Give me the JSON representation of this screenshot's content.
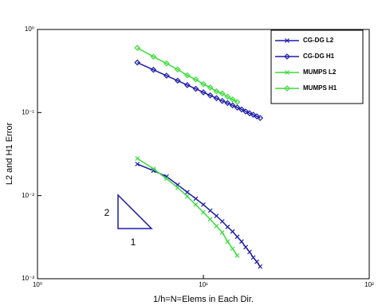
{
  "chart_data": {
    "type": "line",
    "xlabel": "1/h=N=Elems in Each Dir.",
    "ylabel": "L2 and H1 Error",
    "log_x": true,
    "log_y": true,
    "xlim": [
      1,
      100
    ],
    "ylim": [
      0.001,
      1
    ],
    "xticks": [
      {
        "value": 1,
        "label": "10⁰"
      },
      {
        "value": 10,
        "label": "10¹"
      },
      {
        "value": 100,
        "label": "10²"
      }
    ],
    "yticks": [
      {
        "value": 0.001,
        "label": "10⁻³"
      },
      {
        "value": 0.01,
        "label": "10⁻²"
      },
      {
        "value": 0.1,
        "label": "10⁻¹"
      },
      {
        "value": 1,
        "label": "10⁰"
      }
    ],
    "legend": "upper right",
    "series": [
      {
        "name": "CG-DG L2",
        "color": "#1c1ca8",
        "marker": "x",
        "x": [
          4,
          5,
          6,
          7,
          8,
          9,
          10,
          11,
          12,
          13,
          14,
          15,
          16,
          17,
          18,
          19,
          20,
          21,
          22
        ],
        "values": [
          0.024,
          0.02,
          0.017,
          0.0135,
          0.011,
          0.0092,
          0.0078,
          0.0066,
          0.0057,
          0.0049,
          0.0042,
          0.0037,
          0.0032,
          0.0028,
          0.0024,
          0.0021,
          0.0018,
          0.0016,
          0.0014
        ]
      },
      {
        "name": "CG-DG H1",
        "color": "#1c1ca8",
        "marker": "diamond",
        "x": [
          4,
          5,
          6,
          7,
          8,
          9,
          10,
          11,
          12,
          13,
          14,
          15,
          16,
          17,
          18,
          19,
          20,
          21,
          22
        ],
        "values": [
          0.4,
          0.327,
          0.278,
          0.242,
          0.214,
          0.193,
          0.175,
          0.161,
          0.149,
          0.138,
          0.13,
          0.122,
          0.115,
          0.109,
          0.103,
          0.098,
          0.094,
          0.09,
          0.086
        ]
      },
      {
        "name": "MUMPS L2",
        "color": "#3cdc3c",
        "marker": "x",
        "x": [
          4,
          5,
          6,
          7,
          8,
          9,
          10,
          11,
          12,
          13,
          14,
          15,
          16
        ],
        "values": [
          0.028,
          0.021,
          0.016,
          0.0125,
          0.0098,
          0.0078,
          0.0063,
          0.0052,
          0.0043,
          0.0036,
          0.0028,
          0.0023,
          0.0019
        ]
      },
      {
        "name": "MUMPS H1",
        "color": "#3cdc3c",
        "marker": "diamond",
        "x": [
          4,
          5,
          6,
          7,
          8,
          9,
          10,
          11,
          12,
          13,
          14,
          15,
          16
        ],
        "values": [
          0.6,
          0.47,
          0.39,
          0.33,
          0.28,
          0.25,
          0.22,
          0.2,
          0.18,
          0.17,
          0.155,
          0.144,
          0.134
        ]
      }
    ],
    "annotations": [
      {
        "text": "2"
      },
      {
        "text": "1"
      }
    ]
  }
}
